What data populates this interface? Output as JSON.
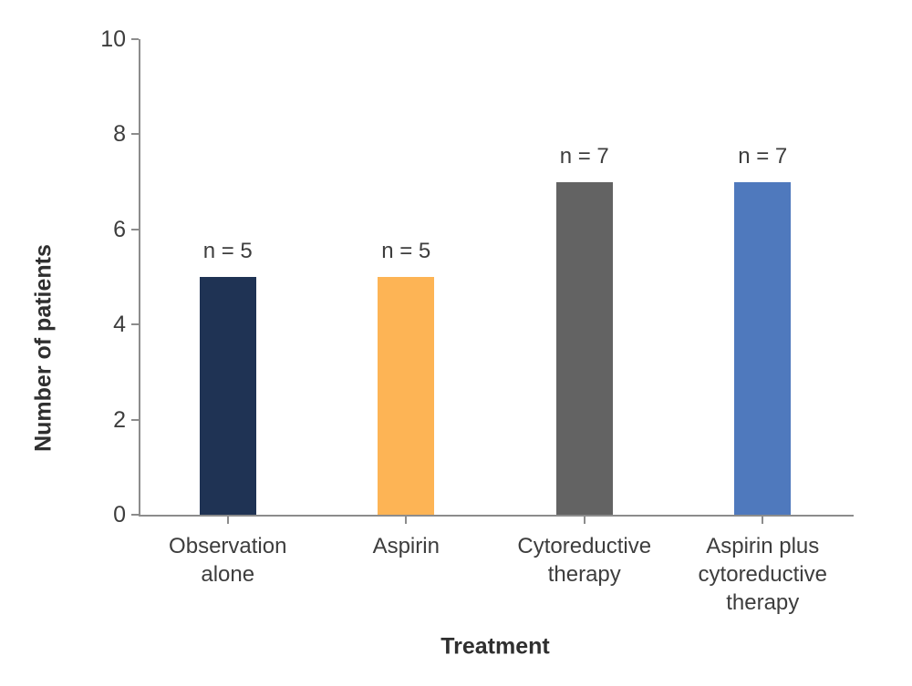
{
  "chart_data": {
    "type": "bar",
    "title": "",
    "categories": [
      "Observation alone",
      "Aspirin",
      "Cytoreductive therapy",
      "Aspirin plus cytoreductive therapy"
    ],
    "values": [
      5,
      5,
      7,
      7
    ],
    "bar_value_labels": [
      "n = 5",
      "n = 5",
      "n = 7",
      "n = 7"
    ],
    "bar_colors": [
      "#1f3354",
      "#fdb455",
      "#636363",
      "#4f79bd"
    ],
    "xlabel": "Treatment",
    "ylabel": "Number of patients",
    "ylim": [
      0,
      10
    ],
    "yticks": [
      "0",
      "2",
      "4",
      "6",
      "8",
      "10"
    ],
    "grid": false,
    "legend": "none",
    "axis_color": "#8c8c8c",
    "tick_text_color": "#3d3d3d"
  }
}
